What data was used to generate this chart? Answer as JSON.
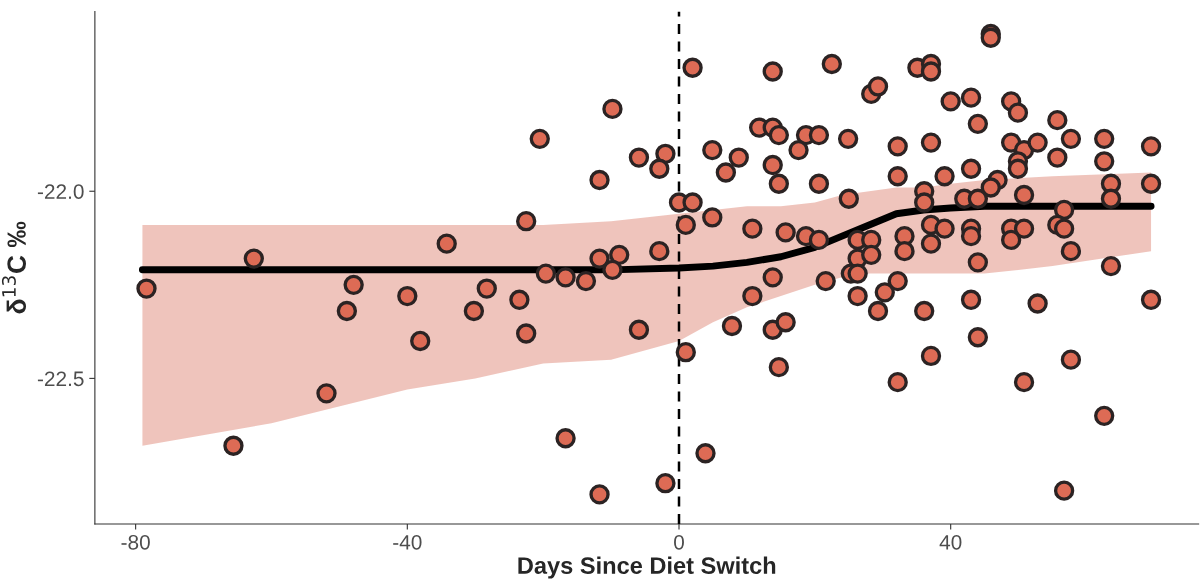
{
  "chart_data": {
    "type": "scatter",
    "xlabel": "Days Since Diet Switch",
    "ylabel": "δ$^{13}$C ‰",
    "xlim": [
      -86,
      76.5
    ],
    "ylim": [
      -22.889,
      -21.52
    ],
    "xticks": [
      -80,
      -40,
      0,
      40
    ],
    "yticks": [
      {
        "value": -22.0,
        "label": "-22.0"
      },
      {
        "value": -22.5,
        "label": "-22.5"
      }
    ],
    "grid": false,
    "legend": false,
    "ref_lines": [
      {
        "axis": "x",
        "value": 0,
        "color": "#000000",
        "line_style": "dashed"
      }
    ],
    "series": [
      {
        "color": "#dd6b55",
        "marker": "circle",
        "x": [
          -78.4,
          -62.6,
          -34.2,
          -47.9,
          -40.0,
          -48.9,
          -30.2,
          -28.3,
          -38.1,
          -51.9,
          -65.6,
          2.0,
          13.8,
          22.5,
          -9.8,
          -20.5,
          11.8,
          13.8,
          14.7,
          18.7,
          20.6,
          24.9,
          -5.9,
          -2.0,
          -2.9,
          4.9,
          8.8,
          17.6,
          6.9,
          13.8,
          14.7,
          20.6,
          -11.7,
          0.0,
          2.0,
          25.0,
          -22.5,
          1.0,
          4.9,
          10.8,
          15.7,
          18.7,
          20.6,
          -2.9,
          -11.7,
          -8.8,
          -9.8,
          -19.6,
          -16.7,
          -13.7,
          -23.5,
          13.8,
          21.6,
          10.8,
          -22.5,
          -5.9,
          7.8,
          13.8,
          15.7,
          1.0,
          14.7,
          -16.7,
          3.9,
          -2.0,
          -11.7,
          45.9,
          45.9,
          35.1,
          37.1,
          37.1,
          28.3,
          29.3,
          40.0,
          43.0,
          48.9,
          49.9,
          44.0,
          55.7,
          32.2,
          37.1,
          48.9,
          50.8,
          52.8,
          57.7,
          62.6,
          69.5,
          49.9,
          49.9,
          55.7,
          62.6,
          32.2,
          39.1,
          43.0,
          46.9,
          45.9,
          63.6,
          69.5,
          36.1,
          36.1,
          42.0,
          44.0,
          50.8,
          63.6,
          56.7,
          33.2,
          37.1,
          39.1,
          43.0,
          43.0,
          48.9,
          50.8,
          55.7,
          56.7,
          26.3,
          28.3,
          33.2,
          37.1,
          48.9,
          57.7,
          26.3,
          28.3,
          25.3,
          26.3,
          44.0,
          63.6,
          32.2,
          30.3,
          26.3,
          29.3,
          36.1,
          43.0,
          52.8,
          69.5,
          44.0,
          37.1,
          57.7,
          32.2,
          50.8,
          62.6,
          56.7
        ],
        "values": [
          -22.26,
          -22.18,
          -22.14,
          -22.25,
          -22.28,
          -22.32,
          -22.32,
          -22.26,
          -22.4,
          -22.54,
          -22.68,
          -21.67,
          -21.68,
          -21.66,
          -21.78,
          -21.86,
          -21.83,
          -21.83,
          -21.85,
          -21.85,
          -21.85,
          -21.86,
          -21.91,
          -21.9,
          -21.94,
          -21.89,
          -21.91,
          -21.89,
          -21.95,
          -21.93,
          -21.98,
          -21.98,
          -21.97,
          -22.03,
          -22.03,
          -22.02,
          -22.08,
          -22.09,
          -22.07,
          -22.1,
          -22.11,
          -22.12,
          -22.13,
          -22.16,
          -22.18,
          -22.17,
          -22.21,
          -22.22,
          -22.23,
          -22.24,
          -22.29,
          -22.23,
          -22.24,
          -22.28,
          -22.38,
          -22.37,
          -22.36,
          -22.37,
          -22.35,
          -22.43,
          -22.47,
          -22.66,
          -22.7,
          -22.78,
          -22.81,
          -21.58,
          -21.59,
          -21.67,
          -21.66,
          -21.68,
          -21.74,
          -21.72,
          -21.76,
          -21.75,
          -21.76,
          -21.79,
          -21.82,
          -21.81,
          -21.88,
          -21.87,
          -21.87,
          -21.89,
          -21.87,
          -21.86,
          -21.86,
          -21.88,
          -21.92,
          -21.94,
          -21.91,
          -21.92,
          -21.96,
          -21.96,
          -21.94,
          -21.97,
          -21.99,
          -21.98,
          -21.98,
          -22.0,
          -22.03,
          -22.02,
          -22.02,
          -22.01,
          -22.02,
          -22.05,
          -22.12,
          -22.09,
          -22.1,
          -22.1,
          -22.12,
          -22.1,
          -22.1,
          -22.09,
          -22.1,
          -22.13,
          -22.13,
          -22.16,
          -22.14,
          -22.13,
          -22.16,
          -22.18,
          -22.17,
          -22.22,
          -22.22,
          -22.19,
          -22.2,
          -22.24,
          -22.27,
          -22.28,
          -22.32,
          -22.32,
          -22.29,
          -22.3,
          -22.29,
          -22.39,
          -22.44,
          -22.45,
          -22.51,
          -22.51,
          -22.6,
          -22.8
        ]
      },
      {
        "type": "line",
        "color": "#000000",
        "marker": "none",
        "line_style": "solid",
        "x": [
          -79,
          -60,
          -40,
          -30,
          -20,
          -10,
          0,
          5,
          10,
          15,
          20,
          24,
          28,
          32,
          36,
          40,
          45,
          55,
          69.5
        ],
        "values": [
          -22.21,
          -22.21,
          -22.21,
          -22.21,
          -22.21,
          -22.21,
          -22.205,
          -22.2,
          -22.19,
          -22.175,
          -22.15,
          -22.12,
          -22.09,
          -22.06,
          -22.05,
          -22.045,
          -22.04,
          -22.04,
          -22.04
        ],
        "upper": [
          -22.09,
          -22.09,
          -22.09,
          -22.09,
          -22.09,
          -22.08,
          -22.06,
          -22.05,
          -22.04,
          -22.04,
          -22.03,
          -22.01,
          -22.0,
          -21.99,
          -21.99,
          -21.98,
          -21.97,
          -21.96,
          -21.95
        ],
        "lower": [
          -22.68,
          -22.62,
          -22.53,
          -22.5,
          -22.46,
          -22.45,
          -22.4,
          -22.35,
          -22.31,
          -22.28,
          -22.25,
          -22.23,
          -22.22,
          -22.22,
          -22.22,
          -22.22,
          -22.22,
          -22.2,
          -22.16
        ]
      }
    ]
  }
}
